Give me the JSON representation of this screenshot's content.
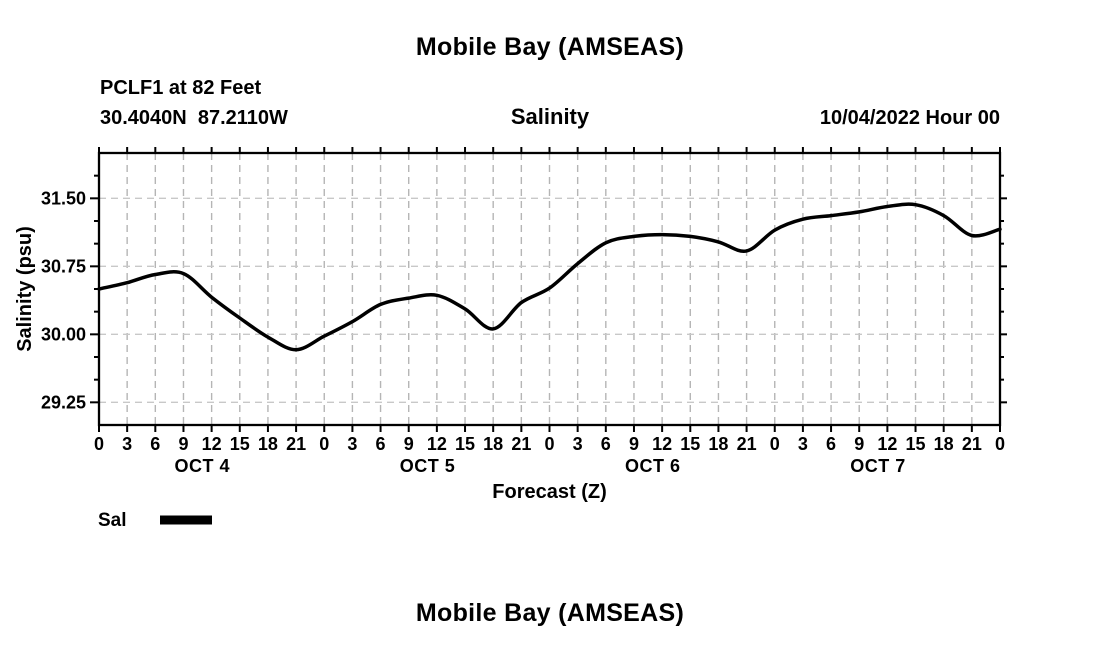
{
  "titles": {
    "top": "Mobile Bay (AMSEAS)",
    "bottom": "Mobile Bay (AMSEAS)"
  },
  "header": {
    "station": "PCLF1 at 82 Feet",
    "coordinates": "30.4040N  87.2110W",
    "variable": "Salinity",
    "datetime": "10/04/2022 Hour 00"
  },
  "legend": {
    "label": "Sal",
    "swatch_color": "#000000",
    "position": "bottom-left"
  },
  "colors": {
    "line": "#000000",
    "frame": "#000000",
    "grid_vertical": "#b5b5b5",
    "grid_horizontal": "#c8c8c8",
    "background": "#ffffff",
    "text": "#000000"
  },
  "chart_data": {
    "type": "line",
    "title": "Salinity",
    "xlabel": "Forecast (Z)",
    "ylabel": "Salinity (psu)",
    "ylim": [
      29.0,
      32.0
    ],
    "yticks_major": [
      29.25,
      30.0,
      30.75,
      31.5
    ],
    "ytick_labels": [
      "29.25",
      "30.00",
      "30.75",
      "31.50"
    ],
    "ytick_minor_step": 0.25,
    "grid": "dashed",
    "legend_position": "bottom-left",
    "x_hours": [
      0,
      3,
      6,
      9,
      12,
      15,
      18,
      21,
      24,
      27,
      30,
      33,
      36,
      39,
      42,
      45,
      48,
      51,
      54,
      57,
      60,
      63,
      66,
      69,
      72,
      75,
      78,
      81,
      84,
      87,
      90,
      93,
      96
    ],
    "xtick_labels": [
      "0",
      "3",
      "6",
      "9",
      "12",
      "15",
      "18",
      "21",
      "0",
      "3",
      "6",
      "9",
      "12",
      "15",
      "18",
      "21",
      "0",
      "3",
      "6",
      "9",
      "12",
      "15",
      "18",
      "21",
      "0",
      "3",
      "6",
      "9",
      "12",
      "15",
      "18",
      "21",
      "0"
    ],
    "day_labels": [
      "OCT 4",
      "OCT 5",
      "OCT 6",
      "OCT 7"
    ],
    "series": [
      {
        "name": "Sal",
        "values": [
          30.5,
          30.57,
          30.66,
          30.67,
          30.41,
          30.18,
          29.97,
          29.83,
          29.98,
          30.14,
          30.33,
          30.4,
          30.43,
          30.28,
          30.06,
          30.35,
          30.51,
          30.78,
          31.01,
          31.08,
          31.1,
          31.08,
          31.02,
          30.92,
          31.15,
          31.27,
          31.31,
          31.35,
          31.41,
          31.43,
          31.31,
          31.09,
          31.16
        ]
      }
    ]
  }
}
